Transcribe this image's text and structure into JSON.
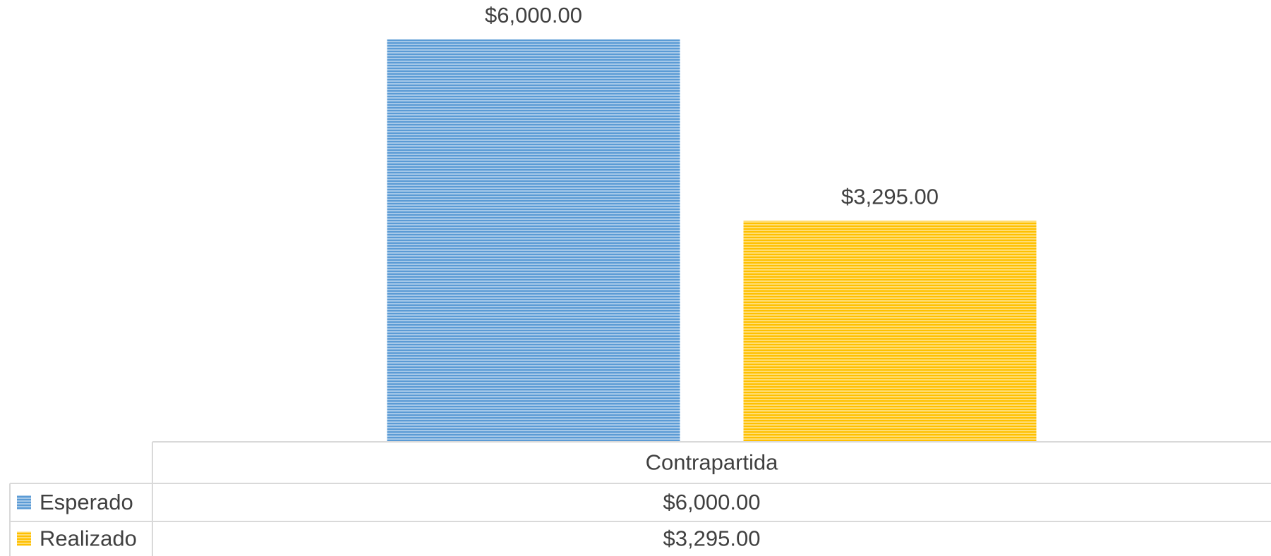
{
  "chart_data": {
    "type": "bar",
    "categories": [
      "Contrapartida"
    ],
    "series": [
      {
        "name": "Esperado",
        "color": "#5b9bd5",
        "values": [
          6000
        ],
        "value_labels": [
          "$6,000.00"
        ]
      },
      {
        "name": "Realizado",
        "color": "#ffc000",
        "values": [
          3295
        ],
        "value_labels": [
          "$3,295.00"
        ]
      }
    ],
    "ylim": [
      0,
      6000
    ]
  }
}
